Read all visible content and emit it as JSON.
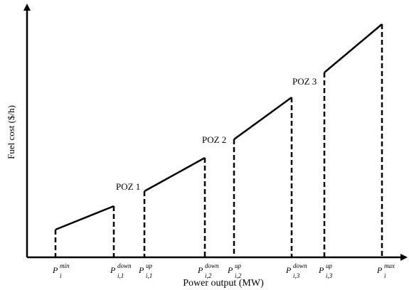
{
  "diagram": {
    "y_axis_label": "Fuel cost ($/h)",
    "x_axis_label": "Power output (MW)",
    "poz_labels": [
      "POZ 1",
      "POZ 2",
      "POZ 3"
    ],
    "ticks": [
      {
        "base": "P",
        "sup": "min",
        "sub": "i"
      },
      {
        "base": "P",
        "sup": "down",
        "sub": "i,1"
      },
      {
        "base": "P",
        "sup": "up",
        "sub": "i,1"
      },
      {
        "base": "P",
        "sup": "down",
        "sub": "i,2"
      },
      {
        "base": "P",
        "sup": "up",
        "sub": "i,2"
      },
      {
        "base": "P",
        "sup": "down",
        "sub": "i,3"
      },
      {
        "base": "P",
        "sup": "up",
        "sub": "i,3"
      },
      {
        "base": "P",
        "sup": "max",
        "sub": "i"
      }
    ],
    "colors": {
      "line": "#000000",
      "background": "#ffffff"
    }
  }
}
